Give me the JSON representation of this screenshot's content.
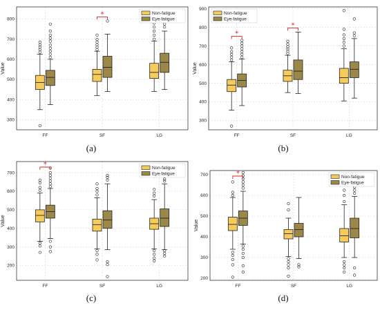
{
  "colors": {
    "nonfatigue": "#f5cc5c",
    "eyefatigue": "#9b8747",
    "star": "#e02020",
    "grid": "#d9d9d9"
  },
  "chart_data": [
    {
      "type": "box",
      "panel_label": "(a)",
      "categories": [
        "FF",
        "SF",
        "LG"
      ],
      "ylabel": "Value",
      "ylim": [
        250,
        860
      ],
      "yticks": [
        300,
        400,
        500,
        600,
        700,
        800
      ],
      "legend": [
        "Non-fatigue",
        "Eye-fatigue"
      ],
      "legend_position": "top-right",
      "grid": true,
      "significance": [
        {
          "category": "SF",
          "label": "*"
        }
      ],
      "series": [
        {
          "name": "Non-fatigue",
          "boxes": [
            {
              "whislo": 350,
              "q1": 450,
              "med": 485,
              "q3": 520,
              "whishi": 625,
              "fliers": [
                270,
                635,
                648,
                660,
                672,
                685
              ]
            },
            {
              "whislo": 420,
              "q1": 490,
              "med": 525,
              "q3": 550,
              "whishi": 640,
              "fliers": [
                648,
                660,
                672,
                685,
                698,
                720
              ]
            },
            {
              "whislo": 440,
              "q1": 505,
              "med": 535,
              "q3": 580,
              "whishi": 690,
              "fliers": [
                700,
                720,
                740,
                760,
                780,
                800
              ]
            }
          ]
        },
        {
          "name": "Eye-fatigue",
          "boxes": [
            {
              "whislo": 375,
              "q1": 470,
              "med": 510,
              "q3": 545,
              "whishi": 600,
              "fliers": [
                610,
                625,
                640,
                655,
                670,
                690,
                705,
                720,
                740,
                775
              ]
            },
            {
              "whislo": 440,
              "q1": 510,
              "med": 560,
              "q3": 615,
              "whishi": 725,
              "fliers": [
                790
              ]
            },
            {
              "whislo": 450,
              "q1": 535,
              "med": 585,
              "q3": 630,
              "whishi": 740,
              "fliers": [
                760,
                775,
                790
              ]
            }
          ]
        }
      ]
    },
    {
      "type": "box",
      "panel_label": "(b)",
      "categories": [
        "FF",
        "SF",
        "LG"
      ],
      "ylabel": "Value",
      "ylim": [
        250,
        910
      ],
      "yticks": [
        300,
        400,
        500,
        600,
        700,
        800,
        900
      ],
      "legend": [
        "Non-fatigue",
        "Eye-fatigue"
      ],
      "legend_position": "top-left",
      "grid": true,
      "significance": [
        {
          "category": "FF",
          "label": "*"
        },
        {
          "category": "SF",
          "label": "*"
        }
      ],
      "series": [
        {
          "name": "Non-fatigue",
          "boxes": [
            {
              "whislo": 355,
              "q1": 455,
              "med": 490,
              "q3": 520,
              "whishi": 615,
              "fliers": [
                270,
                625,
                640,
                655,
                670,
                690
              ]
            },
            {
              "whislo": 450,
              "q1": 510,
              "med": 540,
              "q3": 570,
              "whishi": 650,
              "fliers": [
                660,
                672,
                684,
                696,
                710,
                725
              ]
            },
            {
              "whislo": 405,
              "q1": 500,
              "med": 530,
              "q3": 580,
              "whishi": 685,
              "fliers": [
                700,
                720,
                740,
                760,
                790,
                890
              ]
            }
          ]
        },
        {
          "name": "Eye-fatigue",
          "boxes": [
            {
              "whislo": 380,
              "q1": 480,
              "med": 515,
              "q3": 550,
              "whishi": 630,
              "fliers": [
                640,
                655,
                670,
                685,
                700,
                715,
                730
              ]
            },
            {
              "whislo": 445,
              "q1": 520,
              "med": 565,
              "q3": 625,
              "whishi": 775,
              "fliers": []
            },
            {
              "whislo": 420,
              "q1": 530,
              "med": 575,
              "q3": 615,
              "whishi": 740,
              "fliers": [
                755,
                770,
                845
              ]
            }
          ]
        }
      ]
    },
    {
      "type": "box",
      "panel_label": "(c)",
      "categories": [
        "FF",
        "SF",
        "LG"
      ],
      "ylabel": "Value",
      "ylim": [
        120,
        760
      ],
      "yticks": [
        200,
        300,
        400,
        500,
        600,
        700
      ],
      "legend": [
        "Non-fatigue",
        "Eye-fatigue"
      ],
      "legend_position": "top-right",
      "grid": true,
      "significance": [
        {
          "category": "FF",
          "label": "*"
        },
        {
          "category": "LG",
          "label": "*"
        }
      ],
      "series": [
        {
          "name": "Non-fatigue",
          "boxes": [
            {
              "whislo": 330,
              "q1": 435,
              "med": 470,
              "q3": 500,
              "whishi": 590,
              "fliers": [
                270,
                305,
                320,
                605,
                620,
                645,
                660
              ]
            },
            {
              "whislo": 290,
              "q1": 385,
              "med": 420,
              "q3": 450,
              "whishi": 565,
              "fliers": [
                230,
                260,
                280,
                580,
                600,
                615,
                640
              ]
            },
            {
              "whislo": 290,
              "q1": 395,
              "med": 425,
              "q3": 455,
              "whishi": 555,
              "fliers": [
                225,
                240,
                260,
                280,
                575,
                590,
                610
              ]
            }
          ]
        },
        {
          "name": "Eye-fatigue",
          "boxes": [
            {
              "whislo": 345,
              "q1": 455,
              "med": 490,
              "q3": 525,
              "whishi": 615,
              "fliers": [
                275,
                300,
                330,
                625,
                640,
                655,
                670,
                685,
                700,
                725
              ]
            },
            {
              "whislo": 285,
              "q1": 400,
              "med": 445,
              "q3": 495,
              "whishi": 640,
              "fliers": [
                140,
                205,
                220,
                660,
                675,
                685
              ]
            },
            {
              "whislo": 285,
              "q1": 410,
              "med": 455,
              "q3": 505,
              "whishi": 640,
              "fliers": [
                250,
                265,
                280,
                655,
                665
              ]
            }
          ]
        }
      ]
    },
    {
      "type": "box",
      "panel_label": "(d)",
      "categories": [
        "FF",
        "SF",
        "LG"
      ],
      "ylabel": "Value",
      "ylim": [
        190,
        720
      ],
      "yticks": [
        200,
        300,
        400,
        500,
        600,
        700
      ],
      "legend": [
        "Non-fatigue",
        "Eye-fatigue"
      ],
      "legend_position": "top-right",
      "grid": true,
      "significance": [
        {
          "category": "FF",
          "label": "*"
        }
      ],
      "series": [
        {
          "name": "Non-fatigue",
          "boxes": [
            {
              "whislo": 340,
              "q1": 430,
              "med": 460,
              "q3": 495,
              "whishi": 590,
              "fliers": [
                205,
                265,
                290,
                310,
                325,
                600,
                615,
                665
              ]
            },
            {
              "whislo": 305,
              "q1": 390,
              "med": 415,
              "q3": 435,
              "whishi": 490,
              "fliers": [
                210,
                250,
                265,
                280,
                295,
                530,
                560
              ]
            },
            {
              "whislo": 300,
              "q1": 375,
              "med": 405,
              "q3": 440,
              "whishi": 555,
              "fliers": [
                230,
                250,
                265,
                280,
                570,
                600,
                625,
                650
              ]
            }
          ]
        },
        {
          "name": "Eye-fatigue",
          "boxes": [
            {
              "whislo": 365,
              "q1": 455,
              "med": 490,
              "q3": 525,
              "whishi": 620,
              "fliers": [
                230,
                260,
                300,
                320,
                340,
                355,
                635,
                650,
                665,
                680,
                695,
                710
              ]
            },
            {
              "whislo": 295,
              "q1": 400,
              "med": 435,
              "q3": 465,
              "whishi": 590,
              "fliers": [
                255,
                265
              ]
            },
            {
              "whislo": 300,
              "q1": 395,
              "med": 440,
              "q3": 490,
              "whishi": 595,
              "fliers": [
                215,
                250,
                610,
                625,
                640
              ]
            }
          ]
        }
      ]
    }
  ]
}
